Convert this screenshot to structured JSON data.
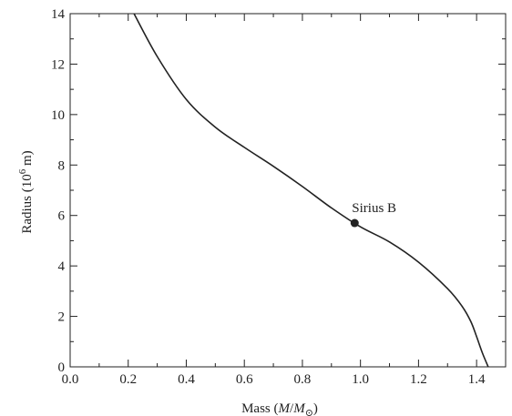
{
  "chart_data": {
    "type": "line",
    "xlabel_prefix": "Mass (",
    "xlabel_italic_1": "M",
    "xlabel_sep": "/",
    "xlabel_italic_2": "M",
    "xlabel_sub": "⊙",
    "xlabel_suffix": ")",
    "ylabel_prefix": "Radius (10",
    "ylabel_sup": "6",
    "ylabel_suffix": " m)",
    "xlim": [
      0.0,
      1.5
    ],
    "ylim": [
      0,
      14
    ],
    "xticks": [
      "0.0",
      "0.2",
      "0.4",
      "0.6",
      "0.8",
      "1.0",
      "1.2",
      "1.4"
    ],
    "yticks": [
      "0",
      "2",
      "4",
      "6",
      "8",
      "10",
      "12",
      "14"
    ],
    "grid": false,
    "series": [
      {
        "x": [
          0.22,
          0.3,
          0.4,
          0.5,
          0.6,
          0.7,
          0.8,
          0.9,
          1.0,
          1.1,
          1.2,
          1.3,
          1.35,
          1.38,
          1.4,
          1.42,
          1.44
        ],
        "y": [
          14.0,
          12.3,
          10.6,
          9.5,
          8.7,
          7.95,
          7.15,
          6.3,
          5.55,
          4.95,
          4.15,
          3.1,
          2.4,
          1.8,
          1.2,
          0.55,
          0.0
        ]
      }
    ],
    "annotations": [
      {
        "label": "Sirius B",
        "x": 0.98,
        "y": 5.7
      }
    ],
    "color": "#222222"
  }
}
